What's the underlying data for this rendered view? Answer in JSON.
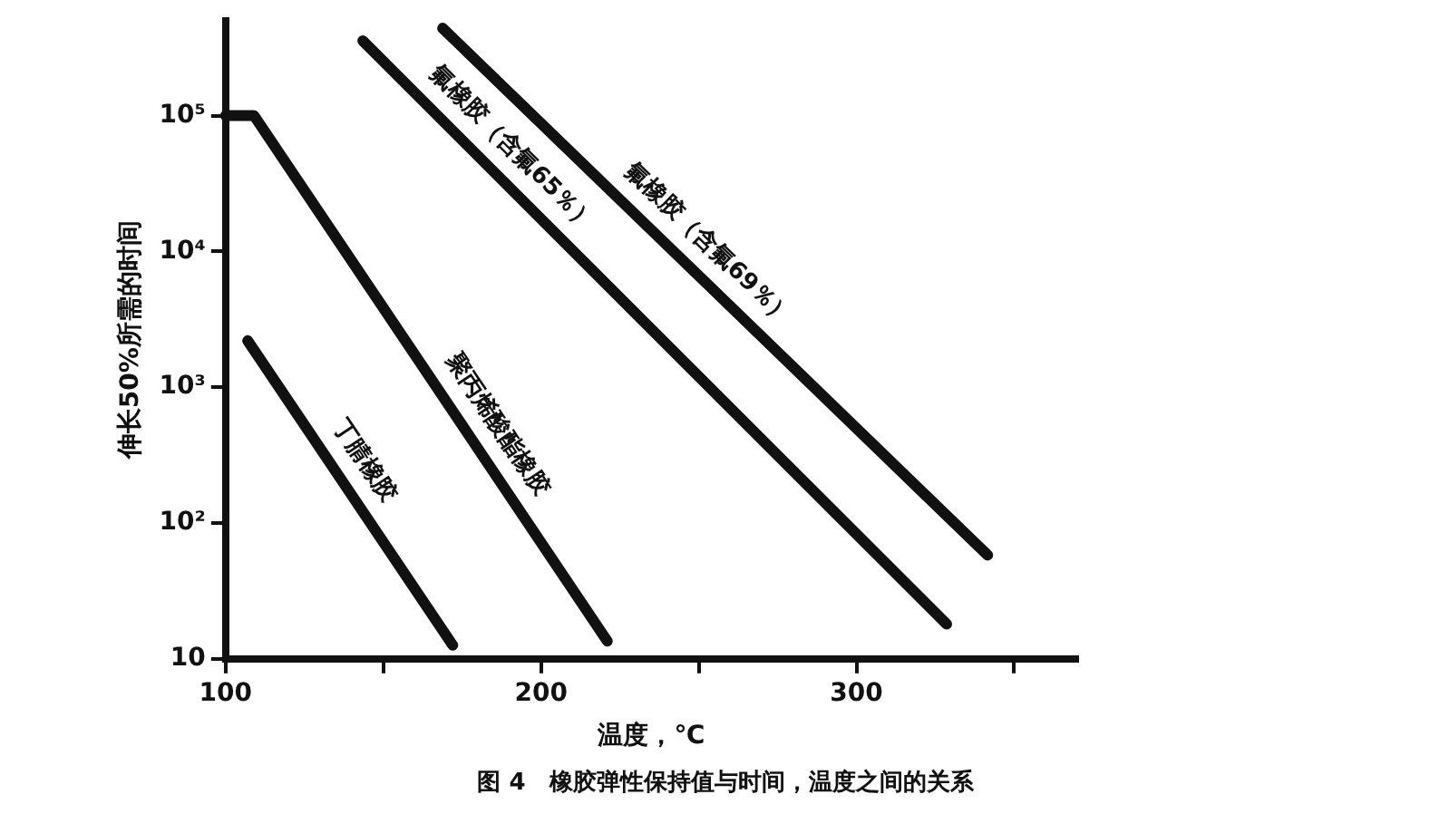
{
  "chart_data": {
    "type": "line",
    "xlabel": "温度，℃",
    "ylabel": "伸长50%所需的时间",
    "annotations": [
      "图 4　橡胶弹性保持值与时间，温度之间的关系"
    ],
    "log": "y",
    "grid": false,
    "legend": false,
    "marker": "none",
    "line_style": "solid",
    "xlim": [
      100,
      370
    ],
    "xticks": [
      100,
      {
        "value": 150,
        "label": null
      },
      200,
      {
        "value": 250,
        "label": null
      },
      300,
      {
        "value": 350,
        "label": null
      }
    ],
    "ylim": [
      10,
      500000
    ],
    "yticks": [
      10,
      {
        "value": 100,
        "label": "10²"
      },
      {
        "value": 1000,
        "label": "10³"
      },
      {
        "value": 10000,
        "label": "10⁴"
      },
      {
        "value": 100000,
        "label": "10⁵"
      }
    ],
    "series": [
      {
        "name": "丁腈橡胶",
        "color": "#111111",
        "x": [
          107,
          172
        ],
        "values": [
          2200,
          12.6
        ]
      },
      {
        "name": "聚丙烯酸酯橡胶",
        "color": "#111111",
        "x": [
          100,
          109,
          221
        ],
        "values": [
          100000,
          100000,
          13.5
        ]
      },
      {
        "name": "氟橡胶（含氟65％）",
        "color": "#111111",
        "x": [
          143.5,
          328.6
        ],
        "values": [
          355000,
          18
        ]
      },
      {
        "name": "氟橡胶（含氟69％）",
        "color": "#111111",
        "x": [
          168.8,
          341.6
        ],
        "values": [
          440000,
          58
        ]
      }
    ]
  }
}
